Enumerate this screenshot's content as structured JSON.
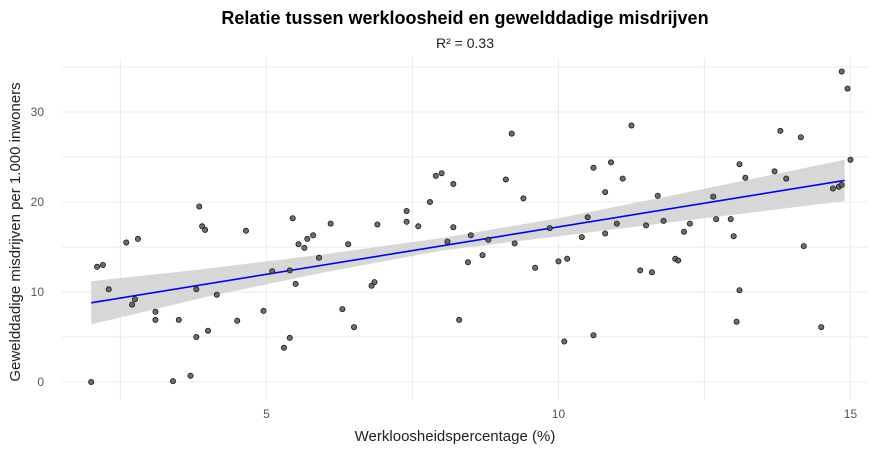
{
  "chart_data": {
    "type": "scatter",
    "title": "Relatie tussen werkloosheid en gewelddadige misdrijven",
    "subtitle": "R² = 0.33",
    "xlabel": "Werkloosheidspercentage (%)",
    "ylabel": "Gewelddadige misdrijven per 1.000 inwoners",
    "xlim": [
      1.5,
      15.3
    ],
    "ylim": [
      -2,
      36
    ],
    "x_ticks": [
      5,
      10,
      15
    ],
    "y_ticks": [
      0,
      10,
      20,
      30
    ],
    "grid": true,
    "colors": {
      "points": "#555555",
      "trend_line": "#0000ff",
      "ribbon": "#d3d3d3"
    },
    "trend_line": {
      "x": [
        2.0,
        14.9
      ],
      "y": [
        8.8,
        22.4
      ]
    },
    "confidence_band": {
      "x": [
        2.0,
        4.0,
        6.0,
        8.0,
        10.0,
        12.0,
        14.9
      ],
      "lower": [
        6.4,
        9.5,
        12.2,
        14.6,
        16.2,
        17.8,
        20.1
      ],
      "upper": [
        11.2,
        12.6,
        14.2,
        16.0,
        18.2,
        20.8,
        24.7
      ]
    },
    "points": [
      {
        "x": 2.0,
        "y": 0.0
      },
      {
        "x": 2.1,
        "y": 12.8
      },
      {
        "x": 2.2,
        "y": 13.0
      },
      {
        "x": 2.3,
        "y": 10.3
      },
      {
        "x": 2.6,
        "y": 15.5
      },
      {
        "x": 2.7,
        "y": 8.6
      },
      {
        "x": 2.75,
        "y": 9.2
      },
      {
        "x": 2.8,
        "y": 15.9
      },
      {
        "x": 3.1,
        "y": 7.8
      },
      {
        "x": 3.1,
        "y": 6.9
      },
      {
        "x": 3.4,
        "y": 0.1
      },
      {
        "x": 3.5,
        "y": 6.9
      },
      {
        "x": 3.7,
        "y": 0.7
      },
      {
        "x": 3.8,
        "y": 5.0
      },
      {
        "x": 3.8,
        "y": 10.3
      },
      {
        "x": 3.85,
        "y": 19.5
      },
      {
        "x": 3.9,
        "y": 17.3
      },
      {
        "x": 3.95,
        "y": 16.9
      },
      {
        "x": 4.0,
        "y": 5.7
      },
      {
        "x": 4.15,
        "y": 9.7
      },
      {
        "x": 4.5,
        "y": 6.8
      },
      {
        "x": 4.65,
        "y": 16.8
      },
      {
        "x": 4.95,
        "y": 7.9
      },
      {
        "x": 5.1,
        "y": 12.3
      },
      {
        "x": 5.3,
        "y": 3.8
      },
      {
        "x": 5.4,
        "y": 4.9
      },
      {
        "x": 5.4,
        "y": 12.4
      },
      {
        "x": 5.45,
        "y": 18.2
      },
      {
        "x": 5.5,
        "y": 10.9
      },
      {
        "x": 5.55,
        "y": 15.3
      },
      {
        "x": 5.65,
        "y": 14.9
      },
      {
        "x": 5.7,
        "y": 15.9
      },
      {
        "x": 5.8,
        "y": 16.3
      },
      {
        "x": 5.9,
        "y": 13.8
      },
      {
        "x": 6.1,
        "y": 17.6
      },
      {
        "x": 6.3,
        "y": 8.1
      },
      {
        "x": 6.4,
        "y": 15.3
      },
      {
        "x": 6.5,
        "y": 6.1
      },
      {
        "x": 6.8,
        "y": 10.7
      },
      {
        "x": 6.85,
        "y": 11.1
      },
      {
        "x": 6.9,
        "y": 17.5
      },
      {
        "x": 7.4,
        "y": 17.8
      },
      {
        "x": 7.4,
        "y": 19.0
      },
      {
        "x": 7.6,
        "y": 17.3
      },
      {
        "x": 7.8,
        "y": 20.0
      },
      {
        "x": 7.9,
        "y": 22.9
      },
      {
        "x": 8.0,
        "y": 23.2
      },
      {
        "x": 8.1,
        "y": 15.6
      },
      {
        "x": 8.2,
        "y": 17.2
      },
      {
        "x": 8.2,
        "y": 22.0
      },
      {
        "x": 8.3,
        "y": 6.9
      },
      {
        "x": 8.45,
        "y": 13.3
      },
      {
        "x": 8.5,
        "y": 16.3
      },
      {
        "x": 8.7,
        "y": 14.1
      },
      {
        "x": 8.8,
        "y": 15.8
      },
      {
        "x": 9.1,
        "y": 22.5
      },
      {
        "x": 9.2,
        "y": 27.6
      },
      {
        "x": 9.25,
        "y": 15.4
      },
      {
        "x": 9.4,
        "y": 20.4
      },
      {
        "x": 9.6,
        "y": 12.7
      },
      {
        "x": 9.85,
        "y": 17.1
      },
      {
        "x": 10.0,
        "y": 13.4
      },
      {
        "x": 10.1,
        "y": 4.5
      },
      {
        "x": 10.15,
        "y": 13.7
      },
      {
        "x": 10.4,
        "y": 16.1
      },
      {
        "x": 10.5,
        "y": 18.3
      },
      {
        "x": 10.6,
        "y": 5.2
      },
      {
        "x": 10.6,
        "y": 23.8
      },
      {
        "x": 10.8,
        "y": 16.5
      },
      {
        "x": 10.8,
        "y": 21.1
      },
      {
        "x": 10.9,
        "y": 24.4
      },
      {
        "x": 11.0,
        "y": 17.6
      },
      {
        "x": 11.1,
        "y": 22.6
      },
      {
        "x": 11.25,
        "y": 28.5
      },
      {
        "x": 11.4,
        "y": 12.4
      },
      {
        "x": 11.5,
        "y": 17.4
      },
      {
        "x": 11.6,
        "y": 12.2
      },
      {
        "x": 11.7,
        "y": 20.7
      },
      {
        "x": 11.8,
        "y": 17.9
      },
      {
        "x": 12.0,
        "y": 13.7
      },
      {
        "x": 12.05,
        "y": 13.5
      },
      {
        "x": 12.15,
        "y": 16.7
      },
      {
        "x": 12.25,
        "y": 17.6
      },
      {
        "x": 12.65,
        "y": 20.6
      },
      {
        "x": 12.7,
        "y": 18.1
      },
      {
        "x": 12.95,
        "y": 18.1
      },
      {
        "x": 13.0,
        "y": 16.2
      },
      {
        "x": 13.05,
        "y": 6.7
      },
      {
        "x": 13.1,
        "y": 10.2
      },
      {
        "x": 13.1,
        "y": 24.2
      },
      {
        "x": 13.2,
        "y": 22.7
      },
      {
        "x": 13.7,
        "y": 23.4
      },
      {
        "x": 13.8,
        "y": 27.9
      },
      {
        "x": 13.9,
        "y": 22.6
      },
      {
        "x": 14.15,
        "y": 27.2
      },
      {
        "x": 14.2,
        "y": 15.1
      },
      {
        "x": 14.5,
        "y": 6.1
      },
      {
        "x": 14.7,
        "y": 21.5
      },
      {
        "x": 14.8,
        "y": 21.7
      },
      {
        "x": 14.85,
        "y": 34.5
      },
      {
        "x": 14.85,
        "y": 21.9
      },
      {
        "x": 14.95,
        "y": 32.6
      },
      {
        "x": 15.0,
        "y": 24.7
      }
    ]
  }
}
